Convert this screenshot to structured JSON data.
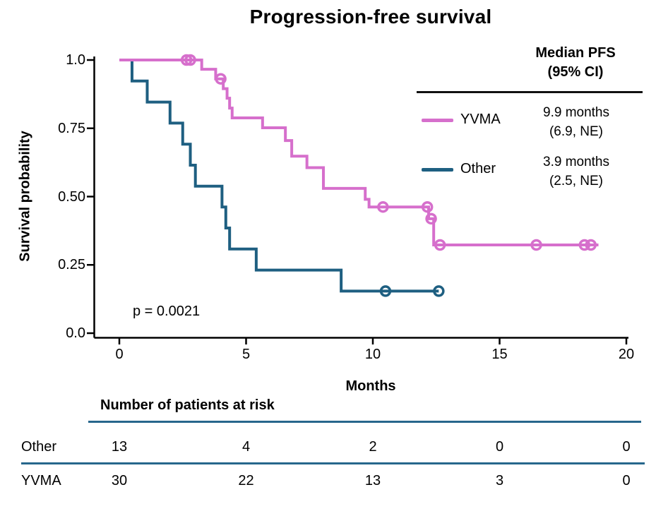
{
  "title": "Progression-free survival",
  "pvalue_text": "p = 0.0021",
  "axes": {
    "ylabel": "Survival probability",
    "xlabel": "Months",
    "x_ticks": [
      "0",
      "5",
      "10",
      "15",
      "20"
    ],
    "y_ticks": [
      "0.0",
      "0.25",
      "0.50",
      "0.75",
      "1.0"
    ],
    "x_range": [
      0,
      20
    ],
    "y_range": [
      0,
      1
    ],
    "grid": "off"
  },
  "legend": {
    "position": "top-right",
    "header_line1": "Median PFS",
    "header_line2": "(95% CI)",
    "entries": [
      {
        "name": "YVMA",
        "color": "#D66FCC",
        "median_line1": "9.9 months",
        "median_line2": "(6.9, NE)"
      },
      {
        "name": "Other",
        "color": "#1E5F81",
        "median_line1": "3.9 months",
        "median_line2": "(2.5, NE)"
      }
    ]
  },
  "chart_data": {
    "type": "line",
    "subtype": "kaplan-meier-step",
    "title": "Progression-free survival",
    "xlabel": "Months",
    "ylabel": "Survival probability",
    "xlim": [
      0,
      20
    ],
    "ylim": [
      0,
      1
    ],
    "annotation": "p = 0.0021",
    "series": [
      {
        "name": "Other",
        "color": "#1E5F81",
        "points": [
          [
            0,
            1.0
          ],
          [
            0.5,
            0.923
          ],
          [
            1.1,
            0.846
          ],
          [
            2.0,
            0.769
          ],
          [
            2.5,
            0.692
          ],
          [
            2.8,
            0.615
          ],
          [
            3.0,
            0.538
          ],
          [
            4.05,
            0.462
          ],
          [
            4.2,
            0.385
          ],
          [
            4.35,
            0.308
          ],
          [
            5.4,
            0.231
          ],
          [
            8.75,
            0.154
          ],
          [
            12.6,
            0.154
          ]
        ],
        "censor_marks": [
          [
            10.5,
            0.154
          ],
          [
            12.6,
            0.154
          ]
        ]
      },
      {
        "name": "YVMA",
        "color": "#D66FCC",
        "points": [
          [
            0,
            1.0
          ],
          [
            3.25,
            0.966
          ],
          [
            3.8,
            0.931
          ],
          [
            4.1,
            0.895
          ],
          [
            4.25,
            0.86
          ],
          [
            4.35,
            0.824
          ],
          [
            4.45,
            0.788
          ],
          [
            5.65,
            0.752
          ],
          [
            6.55,
            0.705
          ],
          [
            6.8,
            0.648
          ],
          [
            7.4,
            0.606
          ],
          [
            8.05,
            0.53
          ],
          [
            9.7,
            0.49
          ],
          [
            9.85,
            0.462
          ],
          [
            12.2,
            0.419
          ],
          [
            12.4,
            0.323
          ],
          [
            18.9,
            0.323
          ]
        ],
        "censor_marks": [
          [
            2.65,
            1.0
          ],
          [
            2.8,
            1.0
          ],
          [
            4.0,
            0.931
          ],
          [
            10.4,
            0.462
          ],
          [
            12.15,
            0.462
          ],
          [
            12.3,
            0.419
          ],
          [
            12.65,
            0.323
          ],
          [
            16.45,
            0.323
          ],
          [
            18.35,
            0.323
          ],
          [
            18.6,
            0.323
          ]
        ]
      }
    ]
  },
  "risk_table": {
    "header": "Number of patients at risk",
    "time_points": [
      0,
      5,
      10,
      15,
      20
    ],
    "rows": [
      {
        "label": "Other",
        "values": [
          "13",
          "4",
          "2",
          "0",
          "0"
        ]
      },
      {
        "label": "YVMA",
        "values": [
          "30",
          "22",
          "13",
          "3",
          "0"
        ]
      }
    ]
  },
  "colors": {
    "yvma_curve": "#D66FCC",
    "other_curve": "#1E5F81",
    "axis": "#000000",
    "table_rule": "#27678C",
    "background": "#FFFFFF"
  }
}
